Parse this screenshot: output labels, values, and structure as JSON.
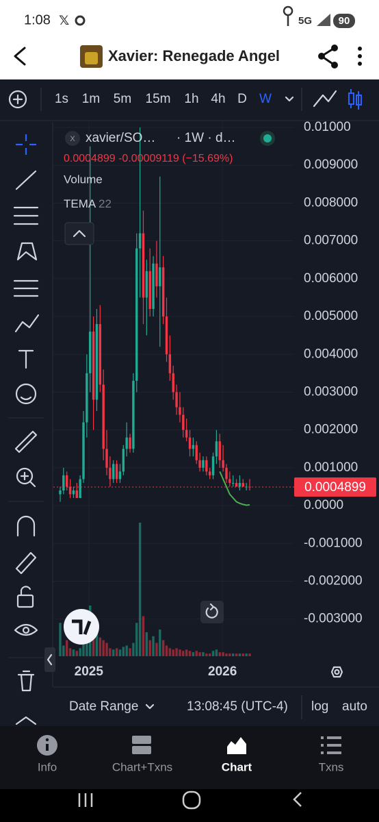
{
  "status_bar": {
    "time": "1:08",
    "network": "5G",
    "battery": "90"
  },
  "header": {
    "title": "Xavier: Renegade Angel"
  },
  "toolbar": {
    "intervals": [
      "1s",
      "1m",
      "5m",
      "15m",
      "1h",
      "4h",
      "D",
      "W"
    ],
    "selected": 7
  },
  "chart": {
    "type": "candlestick",
    "symbol": "xavier/SO…",
    "interval": "· 1W · d…",
    "last": "0.0004899",
    "change": "-0.00009119",
    "change_pct": "(−15.69%)",
    "volume_label": "Volume",
    "indicator": "TEMA",
    "indicator_length": "22",
    "up_color": "#22ab94",
    "down_color": "#f23645",
    "tema_color": "#4caf50",
    "grid": true,
    "ylim": [
      -0.00402,
      0.010145
    ],
    "yticks": [
      {
        "value": 0.01,
        "label": "0.01000"
      },
      {
        "value": 0.009,
        "label": "0.009000"
      },
      {
        "value": 0.008,
        "label": "0.008000"
      },
      {
        "value": 0.007,
        "label": "0.007000"
      },
      {
        "value": 0.006,
        "label": "0.006000"
      },
      {
        "value": 0.005,
        "label": "0.005000"
      },
      {
        "value": 0.004,
        "label": "0.004000"
      },
      {
        "value": 0.003,
        "label": "0.003000"
      },
      {
        "value": 0.002,
        "label": "0.002000"
      },
      {
        "value": 0.001,
        "label": "0.001000"
      },
      {
        "value": 0,
        "label": "0.0000"
      },
      {
        "value": -0.001,
        "label": "-0.001000"
      },
      {
        "value": -0.002,
        "label": "-0.002000"
      },
      {
        "value": -0.003,
        "label": "-0.003000"
      }
    ],
    "xticks": [
      {
        "value": 8.6,
        "label": "2025"
      },
      {
        "value": 48.8,
        "label": "2026"
      }
    ],
    "ohlc": [
      [
        0.0003,
        0.0005,
        0.0001,
        0.0004
      ],
      [
        0.0004,
        0.001,
        0.0003,
        0.0008
      ],
      [
        0.0008,
        0.0009,
        0.0004,
        0.0005
      ],
      [
        0.0005,
        0.0007,
        0.0002,
        0.0003
      ],
      [
        0.0003,
        0.0005,
        0.0002,
        0.0004
      ],
      [
        0.0004,
        0.0006,
        0.0002,
        0.0002
      ],
      [
        0.0002,
        0.0008,
        0.0002,
        0.0007
      ],
      [
        0.0007,
        0.0025,
        0.0006,
        0.0022
      ],
      [
        0.0022,
        0.004,
        0.0018,
        0.0035
      ],
      [
        0.0035,
        0.0095,
        0.003,
        0.0046
      ],
      [
        0.0046,
        0.005,
        0.002,
        0.0028
      ],
      [
        0.0028,
        0.0052,
        0.0025,
        0.0048
      ],
      [
        0.0048,
        0.0053,
        0.003,
        0.0032
      ],
      [
        0.0032,
        0.0036,
        0.0012,
        0.0015
      ],
      [
        0.0015,
        0.002,
        0.0008,
        0.001
      ],
      [
        0.001,
        0.0013,
        0.0005,
        0.0007
      ],
      [
        0.0007,
        0.0012,
        0.0006,
        0.0011
      ],
      [
        0.0011,
        0.0012,
        0.0006,
        0.0007
      ],
      [
        0.0007,
        0.0011,
        0.0006,
        0.0009
      ],
      [
        0.0009,
        0.0016,
        0.0008,
        0.0015
      ],
      [
        0.0015,
        0.0022,
        0.0013,
        0.0018
      ],
      [
        0.0018,
        0.0019,
        0.0014,
        0.0015
      ],
      [
        0.0015,
        0.0035,
        0.0014,
        0.0033
      ],
      [
        0.0033,
        0.0072,
        0.003,
        0.0068
      ],
      [
        0.0068,
        0.01,
        0.0055,
        0.0072
      ],
      [
        0.0072,
        0.0078,
        0.0048,
        0.0055
      ],
      [
        0.0055,
        0.0065,
        0.0045,
        0.0062
      ],
      [
        0.0062,
        0.0068,
        0.005,
        0.0052
      ],
      [
        0.0052,
        0.0066,
        0.005,
        0.0064
      ],
      [
        0.0064,
        0.007,
        0.0055,
        0.0058
      ],
      [
        0.0058,
        0.0087,
        0.0042,
        0.0063
      ],
      [
        0.0063,
        0.0066,
        0.0048,
        0.005
      ],
      [
        0.005,
        0.0055,
        0.0038,
        0.004
      ],
      [
        0.004,
        0.0045,
        0.0033,
        0.0035
      ],
      [
        0.0035,
        0.0037,
        0.0028,
        0.003
      ],
      [
        0.003,
        0.0032,
        0.0024,
        0.0026
      ],
      [
        0.0026,
        0.003,
        0.0022,
        0.0024
      ],
      [
        0.0024,
        0.0026,
        0.0018,
        0.002
      ],
      [
        0.002,
        0.0023,
        0.0017,
        0.0018
      ],
      [
        0.0018,
        0.002,
        0.0013,
        0.0015
      ],
      [
        0.0015,
        0.0018,
        0.0013,
        0.0016
      ],
      [
        0.0016,
        0.0017,
        0.0011,
        0.0012
      ],
      [
        0.0012,
        0.0014,
        0.0009,
        0.001
      ],
      [
        0.001,
        0.0013,
        0.0009,
        0.0012
      ],
      [
        0.0012,
        0.0013,
        0.0008,
        0.0009
      ],
      [
        0.0009,
        0.001,
        0.0007,
        0.0008
      ],
      [
        0.0008,
        0.0014,
        0.0007,
        0.0013
      ],
      [
        0.0013,
        0.002,
        0.0011,
        0.0017
      ],
      [
        0.0017,
        0.0019,
        0.001,
        0.0012
      ],
      [
        0.0012,
        0.0016,
        0.0009,
        0.001
      ],
      [
        0.001,
        0.0011,
        0.0006,
        0.0007
      ],
      [
        0.0007,
        0.0009,
        0.0005,
        0.0006
      ],
      [
        0.0006,
        0.0008,
        0.0005,
        0.0006
      ],
      [
        0.0006,
        0.0007,
        0.0005,
        0.0005
      ],
      [
        0.0005,
        0.0008,
        0.0004,
        0.0006
      ],
      [
        0.0006,
        0.0007,
        0.0005,
        0.0005
      ],
      [
        0.0005,
        0.0006,
        0.0004,
        0.0005
      ],
      [
        0.0005,
        0.0007,
        0.0004,
        0.0004899
      ]
    ],
    "volume": [
      25,
      8,
      12,
      6,
      5,
      4,
      6,
      15,
      20,
      38,
      22,
      18,
      14,
      12,
      10,
      6,
      5,
      6,
      5,
      7,
      8,
      6,
      10,
      25,
      100,
      30,
      18,
      12,
      15,
      10,
      20,
      12,
      8,
      6,
      5,
      6,
      5,
      4,
      5,
      4,
      3,
      4,
      3,
      3,
      2,
      2,
      4,
      5,
      3,
      3,
      2,
      2,
      2,
      2,
      2,
      2,
      2,
      2
    ],
    "tema": [
      null,
      null,
      null,
      null,
      null,
      null,
      null,
      null,
      null,
      null,
      null,
      null,
      null,
      null,
      null,
      null,
      null,
      null,
      null,
      null,
      null,
      null,
      null,
      null,
      null,
      null,
      null,
      null,
      null,
      null,
      null,
      null,
      null,
      null,
      null,
      null,
      null,
      null,
      null,
      null,
      null,
      null,
      null,
      null,
      null,
      null,
      null,
      null,
      0.0009,
      0.0007,
      0.0005,
      0.0003,
      0.0002,
      0.0001,
      6e-05,
      3e-05,
      1e-05,
      2e-05
    ]
  },
  "bottom_bar": {
    "date_range": "Date Range",
    "time": "13:08:45 (UTC-4)",
    "log": "log",
    "auto": "auto"
  },
  "tabs": [
    "Info",
    "Chart+Txns",
    "Chart",
    "Txns"
  ],
  "active_tab": 2
}
